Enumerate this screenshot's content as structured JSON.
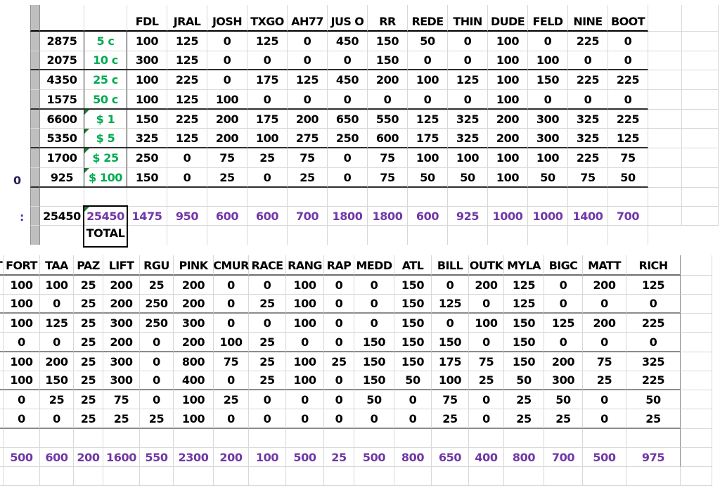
{
  "top_table": {
    "headers": [
      "FDL",
      "JRAL",
      "JOSH",
      "TXGO",
      "AH77",
      "JUS O",
      "RR",
      "REDE",
      "THIN",
      "DUDE",
      "FELD",
      "NINE",
      "BOOT"
    ],
    "rows": [
      {
        "count": "2875",
        "denom": "5 c",
        "comment": false,
        "values": [
          "100",
          "125",
          "0",
          "125",
          "0",
          "450",
          "150",
          "50",
          "0",
          "100",
          "0",
          "225",
          "0"
        ]
      },
      {
        "count": "2075",
        "denom": "10 c",
        "comment": false,
        "values": [
          "300",
          "125",
          "0",
          "0",
          "0",
          "0",
          "150",
          "0",
          "0",
          "100",
          "100",
          "0",
          "0"
        ]
      },
      {
        "count": "4350",
        "denom": "25 c",
        "comment": false,
        "values": [
          "100",
          "225",
          "0",
          "175",
          "125",
          "450",
          "200",
          "100",
          "125",
          "100",
          "150",
          "225",
          "225"
        ]
      },
      {
        "count": "1575",
        "denom": "50 c",
        "comment": false,
        "values": [
          "100",
          "125",
          "100",
          "0",
          "0",
          "0",
          "0",
          "0",
          "0",
          "100",
          "0",
          "0",
          "0"
        ]
      },
      {
        "count": "6600",
        "denom": "$ 1",
        "comment": true,
        "values": [
          "150",
          "225",
          "200",
          "175",
          "200",
          "650",
          "550",
          "125",
          "325",
          "200",
          "300",
          "325",
          "225"
        ]
      },
      {
        "count": "5350",
        "denom": "$ 5",
        "comment": true,
        "values": [
          "325",
          "125",
          "200",
          "100",
          "275",
          "250",
          "600",
          "175",
          "325",
          "200",
          "300",
          "325",
          "125"
        ]
      },
      {
        "count": "1700",
        "denom": "$ 25",
        "comment": true,
        "values": [
          "250",
          "0",
          "75",
          "25",
          "75",
          "0",
          "75",
          "100",
          "100",
          "100",
          "100",
          "225",
          "75"
        ]
      },
      {
        "count": "925",
        "denom": "$ 100",
        "comment": true,
        "values": [
          "150",
          "0",
          "25",
          "0",
          "25",
          "0",
          "75",
          "50",
          "50",
          "100",
          "50",
          "75",
          "50"
        ]
      }
    ],
    "totals_row": {
      "count": "25450",
      "selected_total": "25450",
      "below_label": "TOTAL",
      "values": [
        "1475",
        "950",
        "600",
        "600",
        "700",
        "1800",
        "1800",
        "600",
        "925",
        "1000",
        "1000",
        "1400",
        "700"
      ]
    }
  },
  "bottom_table": {
    "header_fragment": "T",
    "headers": [
      "FORT",
      "TAA",
      "PAZ",
      "LIFT",
      "RGU",
      "PINK",
      "CMUR",
      "RACE",
      "RANG",
      "RAP",
      "MEDD",
      "ATL",
      "BILL",
      "OUTK",
      "MYLA",
      "BIGC",
      "MATT",
      "RICH"
    ],
    "rows": [
      [
        "100",
        "100",
        "25",
        "200",
        "25",
        "200",
        "0",
        "0",
        "100",
        "0",
        "0",
        "150",
        "0",
        "200",
        "125",
        "0",
        "200",
        "125"
      ],
      [
        "100",
        "0",
        "25",
        "200",
        "250",
        "200",
        "0",
        "25",
        "100",
        "0",
        "0",
        "150",
        "125",
        "0",
        "125",
        "0",
        "0",
        "0"
      ],
      [
        "100",
        "125",
        "25",
        "300",
        "250",
        "300",
        "0",
        "0",
        "100",
        "0",
        "0",
        "150",
        "0",
        "100",
        "150",
        "125",
        "200",
        "225"
      ],
      [
        "0",
        "0",
        "25",
        "200",
        "0",
        "200",
        "100",
        "25",
        "0",
        "0",
        "150",
        "150",
        "150",
        "0",
        "150",
        "0",
        "0",
        "0"
      ],
      [
        "100",
        "200",
        "25",
        "300",
        "0",
        "800",
        "75",
        "25",
        "100",
        "25",
        "150",
        "150",
        "175",
        "75",
        "150",
        "200",
        "75",
        "325"
      ],
      [
        "100",
        "150",
        "25",
        "300",
        "0",
        "400",
        "0",
        "25",
        "100",
        "0",
        "150",
        "50",
        "100",
        "25",
        "50",
        "300",
        "25",
        "225"
      ],
      [
        "0",
        "25",
        "25",
        "75",
        "0",
        "100",
        "25",
        "0",
        "0",
        "0",
        "50",
        "0",
        "75",
        "0",
        "25",
        "50",
        "0",
        "50"
      ],
      [
        "0",
        "0",
        "25",
        "25",
        "25",
        "100",
        "0",
        "0",
        "0",
        "0",
        "0",
        "0",
        "25",
        "0",
        "25",
        "25",
        "0",
        "25"
      ]
    ],
    "totals": [
      "500",
      "600",
      "200",
      "1600",
      "550",
      "2300",
      "200",
      "100",
      "500",
      "25",
      "500",
      "800",
      "650",
      "400",
      "800",
      "700",
      "500",
      "975"
    ]
  },
  "edge_fragments": {
    "top_row8": "0",
    "top_totals": ":",
    "bottom_header": "T"
  },
  "colors": {
    "green_denomination": "#00AA50",
    "purple_total": "#7038A6",
    "comment_triangle_green": "#1F7A33",
    "strip_gray": "#BFBFBF",
    "grid_light": "#D8D8D8",
    "grid_dark_top": "#2F2F2F",
    "grid_dark_bottom": "#8C8C8C",
    "header_underline_top": "#000000",
    "header_underline_bottom": "#6F6F6F",
    "fragment_blue": "#3A3ACC"
  }
}
